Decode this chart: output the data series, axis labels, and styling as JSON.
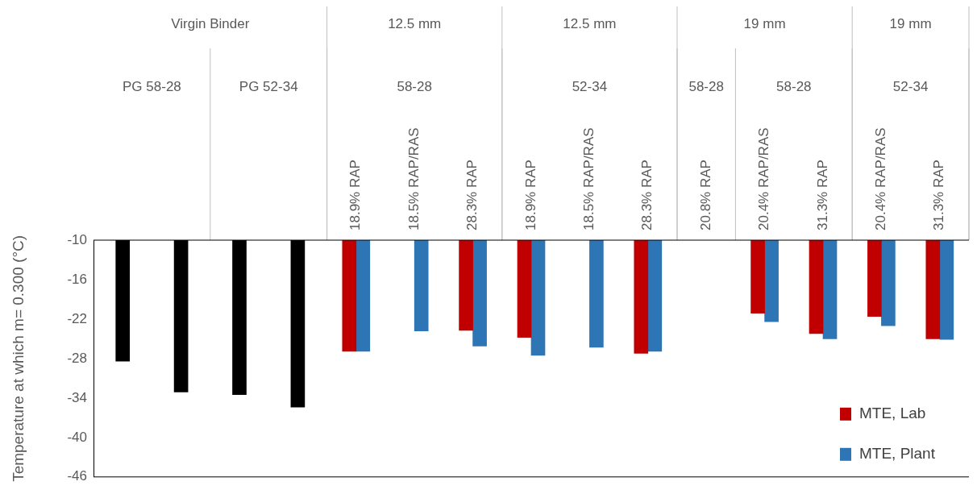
{
  "chart_data": {
    "type": "bar",
    "ylabel": "Temperature at which m= 0.300 (°C)",
    "categories": [
      null,
      null,
      null,
      null,
      "18.9% RAP",
      "18.5% RAP/RAS",
      "28.3% RAP",
      "18.9% RAP",
      "18.5% RAP/RAS",
      "28.3% RAP",
      "20.8% RAP",
      "20.4% RAP/RAS",
      "31.3% RAP",
      "20.4% RAP/RAS",
      "31.3% RAP"
    ],
    "series": [
      {
        "color": "#000000",
        "values": [
          -28.4,
          -33.1,
          -33.5,
          -35.4,
          null,
          null,
          null,
          null,
          null,
          null,
          null,
          null,
          null,
          null,
          null
        ]
      },
      {
        "name": "MTE, Lab",
        "color": "#c00000",
        "values": [
          null,
          null,
          null,
          null,
          -26.9,
          null,
          -23.7,
          -24.8,
          null,
          -27.2,
          null,
          -21.1,
          -24.2,
          -21.6,
          -25.0
        ]
      },
      {
        "name": "MTE, Plant",
        "color": "#2e75b6",
        "values": [
          null,
          null,
          null,
          null,
          -26.9,
          -23.8,
          -26.1,
          -27.5,
          -26.3,
          -26.9,
          null,
          -22.4,
          -25.0,
          -23.0,
          -25.1
        ]
      }
    ],
    "ylim": [
      -46,
      -10
    ],
    "yticks": [
      -10,
      -16,
      -22,
      -28,
      -34,
      -40,
      -46
    ],
    "grid": false,
    "legend": "bottom right",
    "annotations": [
      "Virgin Binder",
      "12.5 mm",
      "12.5 mm",
      "19 mm",
      "19 mm",
      "PG 58-28",
      "PG 52-34",
      "58-28",
      "52-34",
      "58-28",
      "58-28",
      "52-34"
    ]
  }
}
